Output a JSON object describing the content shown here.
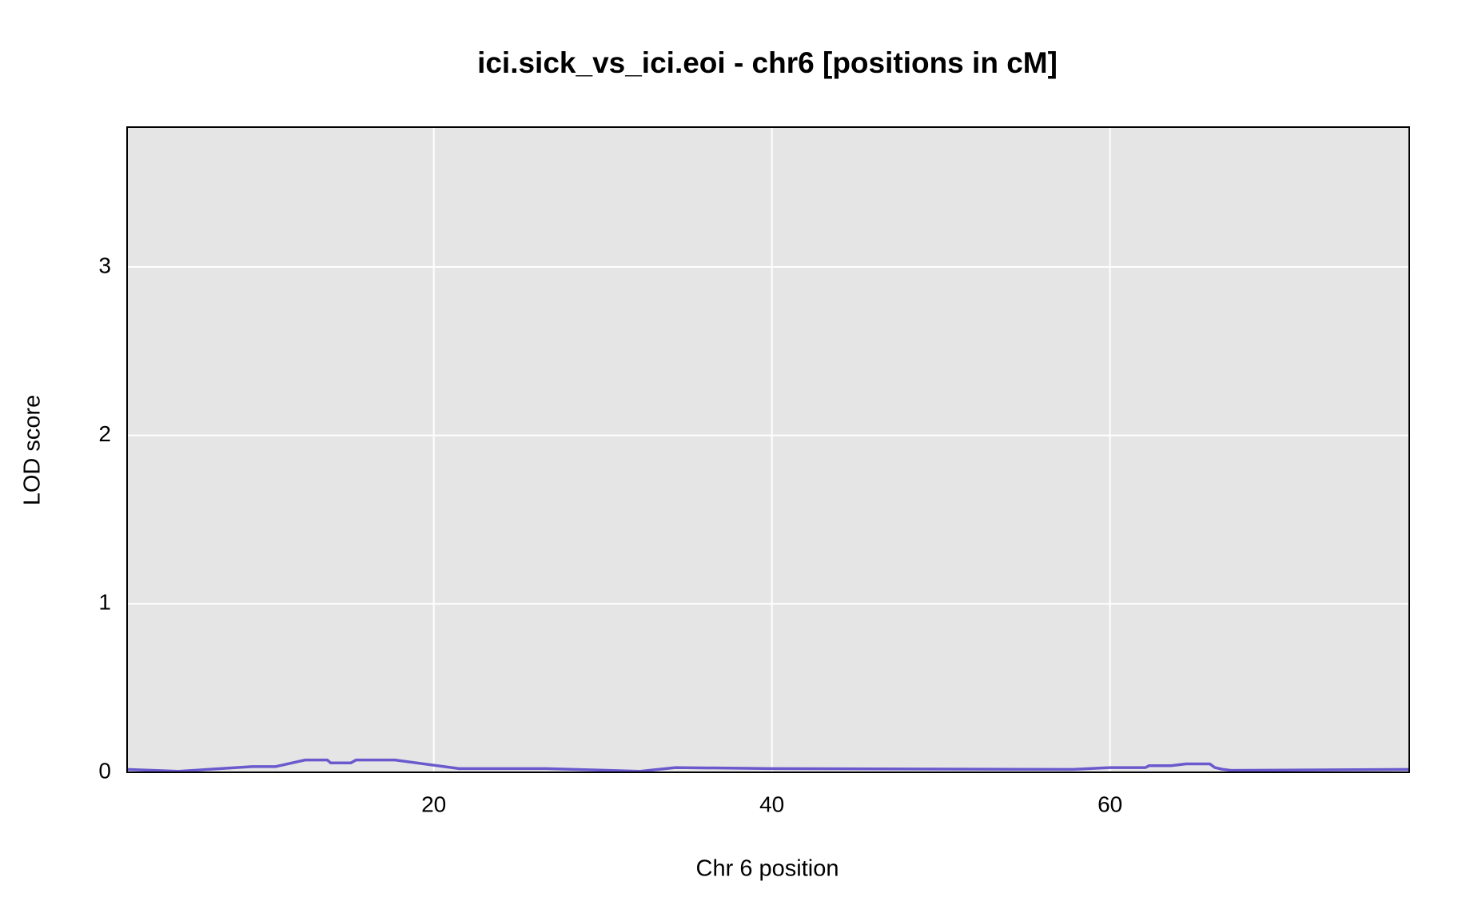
{
  "chart_data": {
    "type": "line",
    "title": "ici.sick_vs_ici.eoi - chr6 [positions in cM]",
    "x_label": "Chr 6 position",
    "y_label": "LOD score",
    "xlim": [
      1.86,
      77.7
    ],
    "ylim": [
      0,
      3.83
    ],
    "xticks": [
      20,
      40,
      60
    ],
    "yticks": [
      0,
      1,
      2,
      3
    ],
    "grid": true,
    "series": [
      {
        "color": "#6a5acd",
        "x": [
          1.86,
          4.9,
          9.26,
          10.65,
          12.4,
          13.7,
          13.9,
          15.1,
          15.4,
          17.7,
          21.5,
          26.6,
          32.2,
          34.3,
          40,
          57.8,
          60,
          62.1,
          62.3,
          63.6,
          64.5,
          65.9,
          66.2,
          66.7,
          67.2,
          77.7
        ],
        "values": [
          0.017,
          0.006,
          0.034,
          0.034,
          0.073,
          0.073,
          0.056,
          0.056,
          0.073,
          0.073,
          0.022,
          0.022,
          0.006,
          0.028,
          0.022,
          0.017,
          0.028,
          0.028,
          0.039,
          0.039,
          0.05,
          0.05,
          0.028,
          0.017,
          0.011,
          0.017
        ]
      }
    ]
  }
}
